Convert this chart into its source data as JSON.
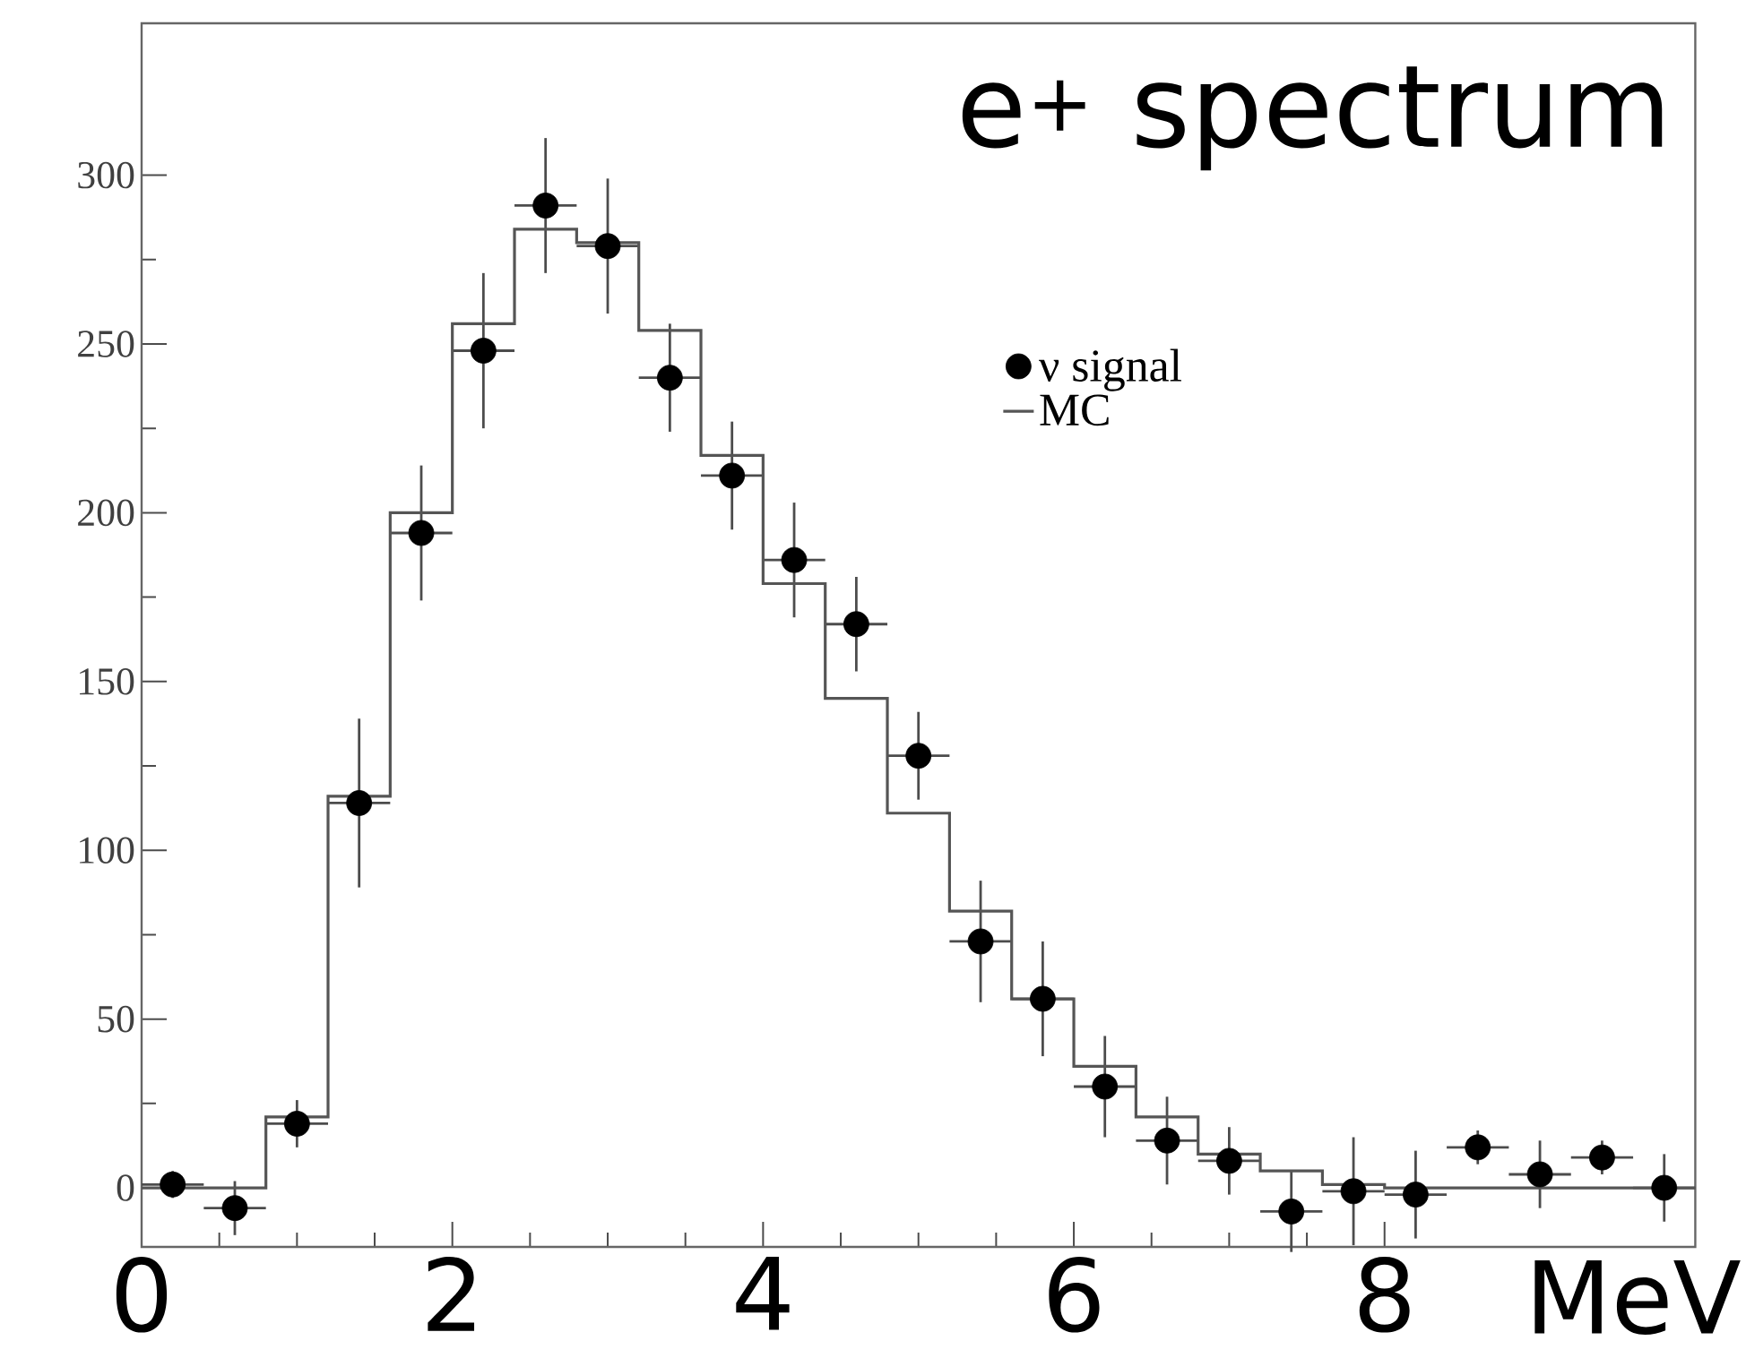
{
  "chart_data": {
    "type": "scatter",
    "title": "e$^{+}$ spectrum",
    "xlabel": "MeV",
    "xlim": [
      0,
      10
    ],
    "xticks": [
      0,
      2,
      4,
      6,
      8
    ],
    "ylim": [
      -17.5,
      345
    ],
    "yticks": [
      0,
      50,
      100,
      150,
      200,
      250,
      300
    ],
    "legend": "top right",
    "grid": false,
    "marker": "circle",
    "series": [
      {
        "name": "ν signal",
        "color": "#000000",
        "x": [
          0.2,
          0.6,
          1.0,
          1.4,
          1.8,
          2.2,
          2.6,
          3.0,
          3.4,
          3.8,
          4.2,
          4.6,
          5.0,
          5.4,
          5.8,
          6.2,
          6.6,
          7.0,
          7.4,
          7.8,
          8.2,
          8.6,
          9.0,
          9.4,
          9.8
        ],
        "values": [
          1,
          -6,
          19,
          114,
          194,
          248,
          291,
          279,
          240,
          211,
          186,
          167,
          128,
          73,
          56,
          30,
          14,
          8,
          -7,
          -1,
          -2,
          12,
          4,
          9,
          0
        ],
        "errors": [
          4,
          8,
          7,
          25,
          20,
          23,
          20,
          20,
          16,
          16,
          17,
          14,
          13,
          18,
          17,
          15,
          13,
          10,
          12,
          16,
          13,
          5,
          10,
          5,
          10
        ],
        "xerrors": [
          0.2,
          0.2,
          0.2,
          0.2,
          0.2,
          0.2,
          0.2,
          0.2,
          0.2,
          0.2,
          0.2,
          0.2,
          0.2,
          0.2,
          0.2,
          0.2,
          0.2,
          0.2,
          0.2,
          0.2,
          0.2,
          0.2,
          0.2,
          0.2,
          0.2
        ]
      },
      {
        "name": "MC",
        "type": "histogram",
        "color": "#555555",
        "bins": [
          0,
          0.4,
          0.8,
          1.2,
          1.6,
          2.0,
          2.4,
          2.8,
          3.2,
          3.6,
          4.0,
          4.4,
          4.8,
          5.2,
          5.6,
          6.0,
          6.4,
          6.8,
          7.2,
          7.6,
          8.0,
          8.4,
          8.8,
          9.2,
          9.6,
          10
        ],
        "values": [
          0,
          0,
          21,
          116,
          200,
          256,
          284,
          280,
          254,
          217,
          179,
          145,
          111,
          82,
          56,
          36,
          21,
          10,
          5,
          1,
          0,
          0,
          0,
          0,
          0
        ]
      }
    ]
  }
}
